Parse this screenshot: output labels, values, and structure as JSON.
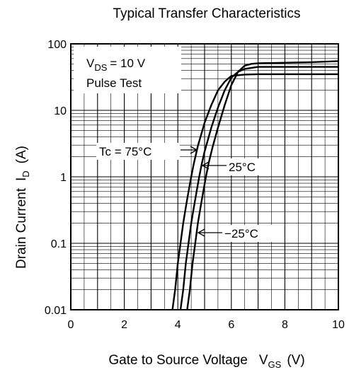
{
  "chart_data": {
    "type": "line",
    "title": "Typical Transfer Characteristics",
    "xlabel": "Gate to Source Voltage",
    "xlabel_symbol": "V",
    "xlabel_sub": "GS",
    "xlabel_unit": "(V)",
    "ylabel": "Drain Current",
    "ylabel_symbol": "I",
    "ylabel_sub": "D",
    "ylabel_unit": "(A)",
    "xlim": [
      0,
      10
    ],
    "ylim": [
      0.01,
      100
    ],
    "yscale": "log",
    "x_ticks": [
      {
        "value": 0,
        "label": "0"
      },
      {
        "value": 2,
        "label": "2"
      },
      {
        "value": 4,
        "label": "4"
      },
      {
        "value": 6,
        "label": "6"
      },
      {
        "value": 8,
        "label": "8"
      },
      {
        "value": 10,
        "label": "10"
      }
    ],
    "y_ticks": [
      {
        "value": 0.01,
        "label": "0.01"
      },
      {
        "value": 0.1,
        "label": "0.1"
      },
      {
        "value": 1,
        "label": "1"
      },
      {
        "value": 10,
        "label": "10"
      },
      {
        "value": 100,
        "label": "100"
      }
    ],
    "grid": true,
    "conditions": {
      "line1_symbol": "V",
      "line1_sub": "DS",
      "line1_value": "= 10 V",
      "line2": "Pulse Test"
    },
    "series": [
      {
        "name": "Tc = 75°C",
        "label": "Tc = 75°C",
        "points": [
          [
            3.8,
            0.01
          ],
          [
            3.9,
            0.02
          ],
          [
            4.0,
            0.05
          ],
          [
            4.1,
            0.1
          ],
          [
            4.2,
            0.2
          ],
          [
            4.3,
            0.35
          ],
          [
            4.4,
            0.6
          ],
          [
            4.5,
            1.0
          ],
          [
            4.6,
            1.6
          ],
          [
            4.75,
            2.9
          ],
          [
            5.0,
            6.5
          ],
          [
            5.25,
            12
          ],
          [
            5.5,
            20
          ],
          [
            5.75,
            27
          ],
          [
            6.0,
            33
          ],
          [
            6.5,
            34.5
          ],
          [
            7.0,
            35
          ],
          [
            8.0,
            35
          ],
          [
            9.0,
            35
          ],
          [
            10.0,
            35
          ]
        ]
      },
      {
        "name": "25°C",
        "label": "25°C",
        "points": [
          [
            4.1,
            0.01
          ],
          [
            4.2,
            0.02
          ],
          [
            4.3,
            0.05
          ],
          [
            4.4,
            0.1
          ],
          [
            4.5,
            0.2
          ],
          [
            4.6,
            0.35
          ],
          [
            4.7,
            0.6
          ],
          [
            4.8,
            1.0
          ],
          [
            4.9,
            1.6
          ],
          [
            5.0,
            2.4
          ],
          [
            5.25,
            5.5
          ],
          [
            5.5,
            11
          ],
          [
            5.75,
            20
          ],
          [
            6.0,
            31
          ],
          [
            6.25,
            38
          ],
          [
            6.5,
            42
          ],
          [
            7.0,
            45
          ],
          [
            8.0,
            45
          ],
          [
            9.0,
            45
          ],
          [
            10.0,
            45
          ]
        ]
      },
      {
        "name": "-25°C",
        "label": "−25°C",
        "points": [
          [
            4.35,
            0.01
          ],
          [
            4.45,
            0.02
          ],
          [
            4.55,
            0.05
          ],
          [
            4.65,
            0.1
          ],
          [
            4.75,
            0.2
          ],
          [
            4.85,
            0.35
          ],
          [
            4.95,
            0.6
          ],
          [
            5.05,
            1.0
          ],
          [
            5.15,
            1.6
          ],
          [
            5.3,
            2.8
          ],
          [
            5.5,
            5.5
          ],
          [
            5.75,
            12
          ],
          [
            6.0,
            24
          ],
          [
            6.25,
            38
          ],
          [
            6.5,
            47
          ],
          [
            6.75,
            50
          ],
          [
            7.0,
            51
          ],
          [
            8.0,
            52
          ],
          [
            9.0,
            53
          ],
          [
            10.0,
            55
          ]
        ]
      }
    ]
  }
}
